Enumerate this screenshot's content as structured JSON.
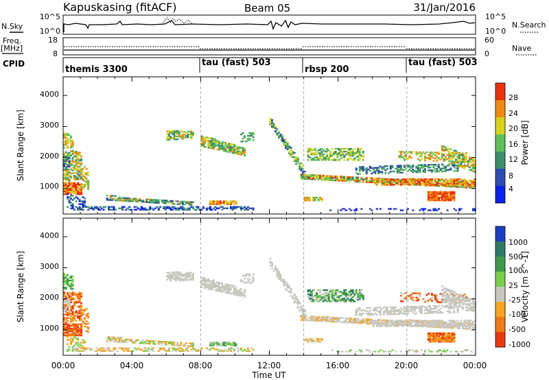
{
  "header": {
    "radar": "Kapuskasing (fitACF)",
    "beam": "Beam 05",
    "date": "31/Jan/2016"
  },
  "sky_panel": {
    "left_label": "N.Sky",
    "left_ticks": [
      "10^5",
      "10^0"
    ],
    "right_ticks": [
      "10^5",
      "10^0"
    ],
    "right_label": "N.Search"
  },
  "freq_panel": {
    "left_label_1": "Freq.",
    "left_label_2": "[MHz]",
    "left_ticks": [
      "18",
      "8"
    ],
    "right_ticks": [
      "60",
      "0"
    ],
    "right_label": "Nave"
  },
  "cpid_panel": {
    "label": "CPID",
    "segments": [
      {
        "label": "themis 3300",
        "start_hour": 0
      },
      {
        "label": "tau (fast) 503",
        "start_hour": 8
      },
      {
        "label": "rbsp 200",
        "start_hour": 14
      },
      {
        "label": "tau (fast) 503",
        "start_hour": 20
      }
    ]
  },
  "chart_data": [
    {
      "type": "heatmap",
      "name": "power",
      "ylabel": "Slant Range [km]",
      "y_ticks": [
        1000,
        2000,
        3000,
        4000
      ],
      "ylim": [
        180,
        4600
      ],
      "colorbar": {
        "label": "Power [dB]",
        "ticks": [
          "4",
          "8",
          "12",
          "16",
          "20",
          "24",
          "28"
        ],
        "colors": [
          "#0a23e6",
          "#2e4bb0",
          "#3d8f6a",
          "#5fbf5a",
          "#d7d21e",
          "#f08a14",
          "#e8320f"
        ]
      }
    },
    {
      "type": "heatmap",
      "name": "velocity",
      "ylabel": "Slant Range [km]",
      "y_ticks": [
        1000,
        2000,
        3000,
        4000
      ],
      "ylim": [
        180,
        4600
      ],
      "xlabel": "Time UT",
      "x_ticks": [
        "00:00",
        "04:00",
        "08:00",
        "12:00",
        "16:00",
        "20:00",
        "00:00"
      ],
      "xlim_hours": [
        0,
        24
      ],
      "colorbar": {
        "label": "Velocity [m s^-1]",
        "ticks": [
          "1000",
          "500",
          "100",
          "25",
          "-25",
          "-100",
          "-500",
          "-1000"
        ],
        "colors": [
          "#1b3fbf",
          "#2f7a66",
          "#3e9a4a",
          "#7ad04a",
          "#c8c8c0",
          "#f5a623",
          "#f07a1a",
          "#e83a10"
        ]
      }
    }
  ]
}
